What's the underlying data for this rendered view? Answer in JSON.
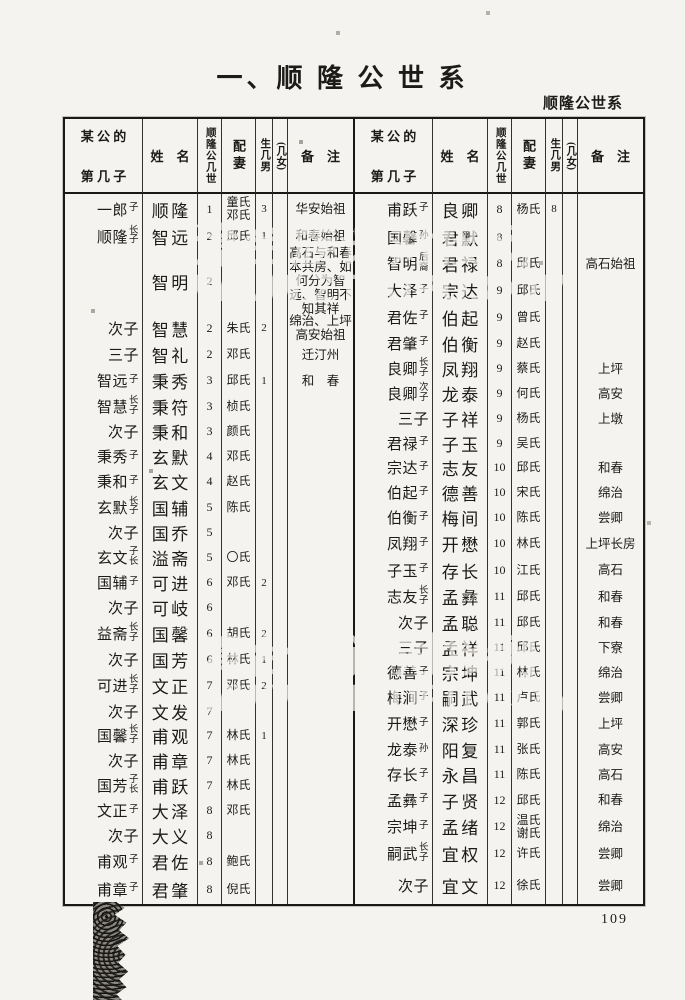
{
  "page": {
    "title": "一、顺 隆 公 世 系",
    "corner_label": "顺隆公世系",
    "page_number": "109",
    "watermark": {
      "line1": "漳台族谱对接网",
      "line2": "WWW.ZTZUPU.COM"
    }
  },
  "table": {
    "headers": {
      "relation_line1": "某 公 的",
      "relation_line2": "第 几 子",
      "name": "姓　名",
      "generation": "顺隆公几世",
      "wife": "配妻",
      "sons": "生几男",
      "daughters": "(几女)",
      "note": "备　注"
    },
    "left_rows": [
      {
        "rel": "一郎",
        "rels": "子",
        "name": "顺隆",
        "gen": "1",
        "wife": "童氏\n邓氏",
        "sons": "3",
        "note": "华安始祖"
      },
      {
        "rel": "顺隆",
        "rels": "长子",
        "name": "智远",
        "gen": "2",
        "wife": "邱氏",
        "sons": "1",
        "note": "和春始祖"
      },
      {
        "rel": "",
        "rels": "",
        "name": "智明",
        "gen": "2",
        "wife": "",
        "sons": "",
        "note": "高石与和春本共房、如何分为智远、智明不知其祥"
      },
      {
        "rel": "次子",
        "rels": "",
        "name": "智慧",
        "gen": "2",
        "wife": "朱氏",
        "sons": "2",
        "note": "绵治、上坪高安始祖"
      },
      {
        "rel": "三子",
        "rels": "",
        "name": "智礼",
        "gen": "2",
        "wife": "邓氏",
        "sons": "",
        "note": "迁汀州"
      },
      {
        "rel": "智远",
        "rels": "子",
        "name": "秉秀",
        "gen": "3",
        "wife": "邱氏",
        "sons": "1",
        "note": "和　春"
      },
      {
        "rel": "智慧",
        "rels": "长子",
        "name": "秉符",
        "gen": "3",
        "wife": "桢氏",
        "sons": "",
        "note": ""
      },
      {
        "rel": "次子",
        "rels": "",
        "name": "秉和",
        "gen": "3",
        "wife": "颜氏",
        "sons": "",
        "note": ""
      },
      {
        "rel": "秉秀",
        "rels": "子",
        "name": "玄默",
        "gen": "4",
        "wife": "邓氏",
        "sons": "",
        "note": ""
      },
      {
        "rel": "秉和",
        "rels": "子",
        "name": "玄文",
        "gen": "4",
        "wife": "赵氏",
        "sons": "",
        "note": ""
      },
      {
        "rel": "玄默",
        "rels": "长子",
        "name": "国辅",
        "gen": "5",
        "wife": "陈氏",
        "sons": "",
        "note": ""
      },
      {
        "rel": "次子",
        "rels": "",
        "name": "国乔",
        "gen": "5",
        "wife": "",
        "sons": "",
        "note": ""
      },
      {
        "rel": "玄文",
        "rels": "子长",
        "name": "溢斋",
        "gen": "5",
        "wife": "〇氏",
        "sons": "",
        "note": ""
      },
      {
        "rel": "国辅",
        "rels": "子",
        "name": "可进",
        "gen": "6",
        "wife": "邓氏",
        "sons": "2",
        "note": ""
      },
      {
        "rel": "次子",
        "rels": "",
        "name": "可岐",
        "gen": "6",
        "wife": "",
        "sons": "",
        "note": ""
      },
      {
        "rel": "益斋",
        "rels": "长子",
        "name": "国馨",
        "gen": "6",
        "wife": "胡氏",
        "sons": "2",
        "note": ""
      },
      {
        "rel": "次子",
        "rels": "",
        "name": "国芳",
        "gen": "6",
        "wife": "林氏",
        "sons": "1",
        "note": ""
      },
      {
        "rel": "可进",
        "rels": "长子",
        "name": "文正",
        "gen": "7",
        "wife": "邓氏",
        "sons": "2",
        "note": ""
      },
      {
        "rel": "次子",
        "rels": "",
        "name": "文发",
        "gen": "7",
        "wife": "",
        "sons": "",
        "note": ""
      },
      {
        "rel": "国馨",
        "rels": "长子",
        "name": "甫观",
        "gen": "7",
        "wife": "林氏",
        "sons": "1",
        "note": ""
      },
      {
        "rel": "次子",
        "rels": "",
        "name": "甫章",
        "gen": "7",
        "wife": "林氏",
        "sons": "",
        "note": ""
      },
      {
        "rel": "国芳",
        "rels": "子长",
        "name": "甫跃",
        "gen": "7",
        "wife": "林氏",
        "sons": "",
        "note": ""
      },
      {
        "rel": "文正",
        "rels": "子",
        "name": "大泽",
        "gen": "8",
        "wife": "邓氏",
        "sons": "",
        "note": ""
      },
      {
        "rel": "次子",
        "rels": "",
        "name": "大义",
        "gen": "8",
        "wife": "",
        "sons": "",
        "note": ""
      },
      {
        "rel": "甫观",
        "rels": "子",
        "name": "君佐",
        "gen": "8",
        "wife": "鲍氏",
        "sons": "",
        "note": ""
      },
      {
        "rel": "甫章",
        "rels": "子",
        "name": "君肇",
        "gen": "8",
        "wife": "倪氏",
        "sons": "",
        "note": ""
      }
    ],
    "right_rows": [
      {
        "rel": "甫跃",
        "rels": "子",
        "name": "良卿",
        "gen": "8",
        "wife": "杨氏",
        "sons": "8",
        "note": ""
      },
      {
        "rel": "国馨",
        "rels": "孙",
        "name": "君默",
        "gen": "8",
        "wife": "",
        "sons": "",
        "note": ""
      },
      {
        "rel": "智明",
        "rels": "后裔",
        "name": "君禄",
        "gen": "8",
        "wife": "邱氏",
        "sons": "",
        "note": "高石始祖"
      },
      {
        "rel": "大泽",
        "rels": "子",
        "name": "宗达",
        "gen": "9",
        "wife": "邱氏",
        "sons": "",
        "note": ""
      },
      {
        "rel": "君佐",
        "rels": "子",
        "name": "伯起",
        "gen": "9",
        "wife": "曾氏",
        "sons": "",
        "note": ""
      },
      {
        "rel": "君肇",
        "rels": "子",
        "name": "伯衡",
        "gen": "9",
        "wife": "赵氏",
        "sons": "",
        "note": ""
      },
      {
        "rel": "良卿",
        "rels": "长子",
        "name": "凤翔",
        "gen": "9",
        "wife": "蔡氏",
        "sons": "",
        "note": "上坪"
      },
      {
        "rel": "良卿",
        "rels": "次子",
        "name": "龙泰",
        "gen": "9",
        "wife": "何氏",
        "sons": "",
        "note": "高安"
      },
      {
        "rel": "三子",
        "rels": "",
        "name": "子祥",
        "gen": "9",
        "wife": "杨氏",
        "sons": "",
        "note": "上墩"
      },
      {
        "rel": "君禄",
        "rels": "子",
        "name": "子玉",
        "gen": "9",
        "wife": "吴氏",
        "sons": "",
        "note": ""
      },
      {
        "rel": "宗达",
        "rels": "子",
        "name": "志友",
        "gen": "10",
        "wife": "邱氏",
        "sons": "",
        "note": "和春"
      },
      {
        "rel": "伯起",
        "rels": "子",
        "name": "德善",
        "gen": "10",
        "wife": "宋氏",
        "sons": "",
        "note": "绵治"
      },
      {
        "rel": "伯衡",
        "rels": "子",
        "name": "梅间",
        "gen": "10",
        "wife": "陈氏",
        "sons": "",
        "note": "尝卿"
      },
      {
        "rel": "凤翔",
        "rels": "子",
        "name": "开懋",
        "gen": "10",
        "wife": "林氏",
        "sons": "",
        "note": "上坪长房"
      },
      {
        "rel": "子玉",
        "rels": "子",
        "name": "存长",
        "gen": "10",
        "wife": "江氏",
        "sons": "",
        "note": "高石"
      },
      {
        "rel": "志友",
        "rels": "长子",
        "name": "孟彝",
        "gen": "11",
        "wife": "邱氏",
        "sons": "",
        "note": "和春"
      },
      {
        "rel": "次子",
        "rels": "",
        "name": "孟聪",
        "gen": "11",
        "wife": "邱氏",
        "sons": "",
        "note": "和春"
      },
      {
        "rel": "三子",
        "rels": "",
        "name": "孟祥",
        "gen": "11",
        "wife": "邱氏",
        "sons": "",
        "note": "下寮"
      },
      {
        "rel": "德善",
        "rels": "子",
        "name": "宗坤",
        "gen": "11",
        "wife": "林氏",
        "sons": "",
        "note": "绵治"
      },
      {
        "rel": "梅涧",
        "rels": "子",
        "name": "嗣武",
        "gen": "11",
        "wife": "卢氏",
        "sons": "",
        "note": "尝卿"
      },
      {
        "rel": "开懋",
        "rels": "子",
        "name": "深珍",
        "gen": "11",
        "wife": "郭氏",
        "sons": "",
        "note": "上坪"
      },
      {
        "rel": "龙泰",
        "rels": "孙",
        "name": "阳复",
        "gen": "11",
        "wife": "张氏",
        "sons": "",
        "note": "高安"
      },
      {
        "rel": "存长",
        "rels": "子",
        "name": "永昌",
        "gen": "11",
        "wife": "陈氏",
        "sons": "",
        "note": "高石"
      },
      {
        "rel": "孟彝",
        "rels": "子",
        "name": "子贤",
        "gen": "12",
        "wife": "邱氏",
        "sons": "",
        "note": "和春"
      },
      {
        "rel": "宗坤",
        "rels": "子",
        "name": "孟绪",
        "gen": "12",
        "wife": "温氏\n谢氏",
        "sons": "",
        "note": "绵治"
      },
      {
        "rel": "嗣武",
        "rels": "长子",
        "name": "宜权",
        "gen": "12",
        "wife": "许氏",
        "sons": "",
        "note": "尝卿"
      },
      {
        "rel": "次子",
        "rels": "",
        "name": "宜文",
        "gen": "12",
        "wife": "徐氏",
        "sons": "",
        "note": "尝卿"
      }
    ]
  }
}
